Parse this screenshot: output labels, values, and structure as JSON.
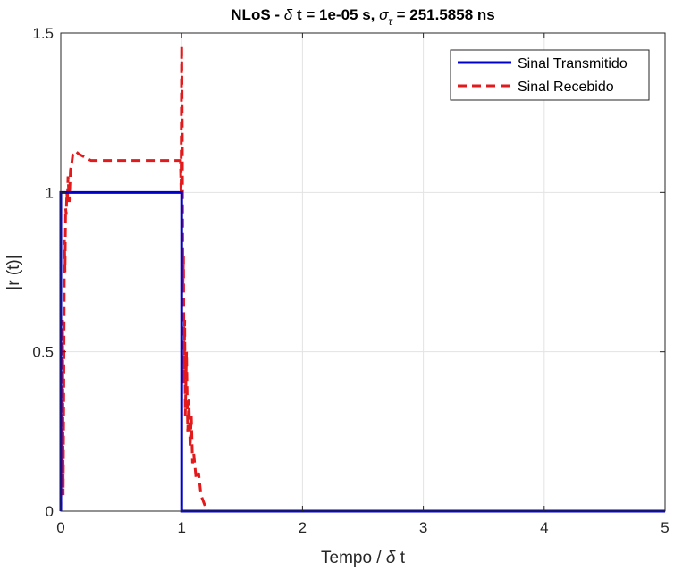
{
  "chart_data": {
    "type": "line",
    "title": {
      "prefix": "NLoS - ",
      "delta": "δ",
      "middle": " t = 1e-05 s, ",
      "sigma": "σ",
      "tau": "τ",
      "suffix": " = 251.5858 ns"
    },
    "xlabel": {
      "text": "Tempo / ",
      "delta": "δ",
      "suffix": " t"
    },
    "ylabel": "|r (t)|",
    "xlim": [
      0,
      5
    ],
    "ylim": [
      0,
      1.5
    ],
    "xticks": [
      0,
      1,
      2,
      3,
      4,
      5
    ],
    "xtick_labels": [
      "0",
      "1",
      "2",
      "3",
      "4",
      "5"
    ],
    "yticks": [
      0,
      0.5,
      1,
      1.5
    ],
    "ytick_labels": [
      "0",
      "0.5",
      "1",
      "1.5"
    ],
    "grid": true,
    "legend_position": "top-right",
    "series": [
      {
        "name": "Sinal Transmitido",
        "color": "#0000cc",
        "style": "solid",
        "x": [
          0,
          0,
          1,
          1,
          5
        ],
        "y": [
          0,
          1,
          1,
          0,
          0
        ]
      },
      {
        "name": "Sinal Recebido",
        "color": "#e31a1c",
        "style": "dashed",
        "x": [
          0,
          0.005,
          0.01,
          0.015,
          0.02,
          0.025,
          0.03,
          0.035,
          0.04,
          0.045,
          0.05,
          0.055,
          0.06,
          0.07,
          0.08,
          0.09,
          0.1,
          0.12,
          0.15,
          0.2,
          0.25,
          0.3,
          0.4,
          0.6,
          0.8,
          0.99,
          0.995,
          1.0,
          1.005,
          1.01,
          1.015,
          1.02,
          1.025,
          1.03,
          1.04,
          1.05,
          1.06,
          1.07,
          1.08,
          1.09,
          1.1,
          1.12,
          1.14,
          1.16,
          1.18,
          1.2,
          1.22,
          1.25,
          5
        ],
        "y": [
          0,
          0.55,
          0.15,
          0.6,
          0.05,
          0.4,
          0.85,
          0.75,
          0.95,
          0.93,
          1.0,
          0.97,
          1.05,
          0.97,
          1.07,
          1.09,
          1.12,
          1.13,
          1.12,
          1.11,
          1.1,
          1.1,
          1.1,
          1.1,
          1.1,
          1.1,
          1.0,
          1.46,
          1.2,
          0.7,
          0.8,
          0.4,
          0.6,
          0.3,
          0.5,
          0.25,
          0.35,
          0.2,
          0.3,
          0.15,
          0.18,
          0.1,
          0.12,
          0.05,
          0.03,
          0.01,
          0.0,
          0.0,
          0.0
        ]
      }
    ]
  }
}
